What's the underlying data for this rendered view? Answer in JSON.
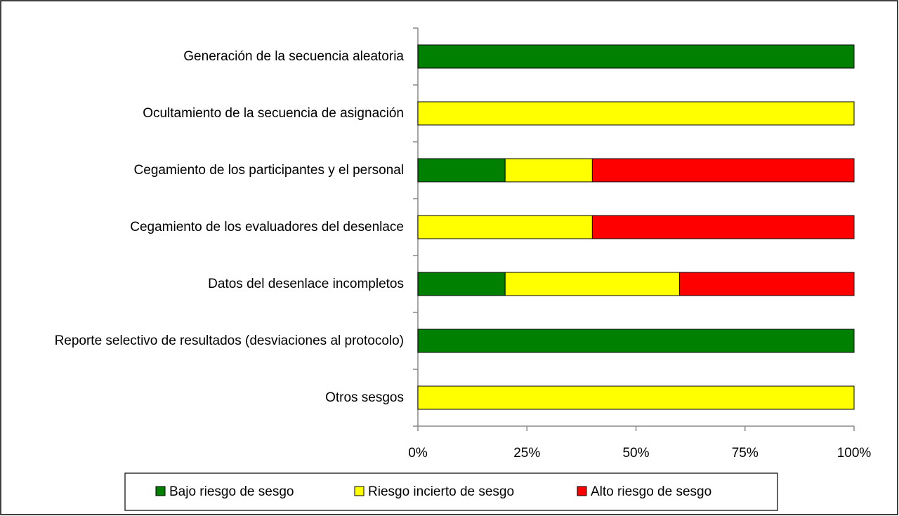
{
  "chart_data": {
    "type": "stacked-barh",
    "categories": [
      "Generación de la secuencia aleatoria",
      "Ocultamiento de la secuencia de asignación",
      "Cegamiento de los participantes y el personal",
      "Cegamiento de los evaluadores del desenlace",
      "Datos del desenlace incompletos",
      "Reporte selectivo de resultados (desviaciones al protocolo)",
      "Otros sesgos"
    ],
    "series": [
      {
        "name": "Bajo riesgo de sesgo",
        "color": "#008000",
        "values": [
          100,
          0,
          20,
          0,
          20,
          100,
          0
        ]
      },
      {
        "name": "Riesgo incierto de sesgo",
        "color": "#ffff00",
        "values": [
          0,
          100,
          20,
          40,
          40,
          0,
          100
        ]
      },
      {
        "name": "Alto riesgo de sesgo",
        "color": "#ff0000",
        "values": [
          0,
          0,
          60,
          60,
          40,
          0,
          0
        ]
      }
    ],
    "xlim": [
      0,
      100
    ],
    "xticks": [
      {
        "value": 0,
        "label": "0%"
      },
      {
        "value": 25,
        "label": "25%"
      },
      {
        "value": 50,
        "label": "50%"
      },
      {
        "value": 75,
        "label": "75%"
      },
      {
        "value": 100,
        "label": "100%"
      }
    ],
    "grid": false,
    "legend": "bottom"
  }
}
